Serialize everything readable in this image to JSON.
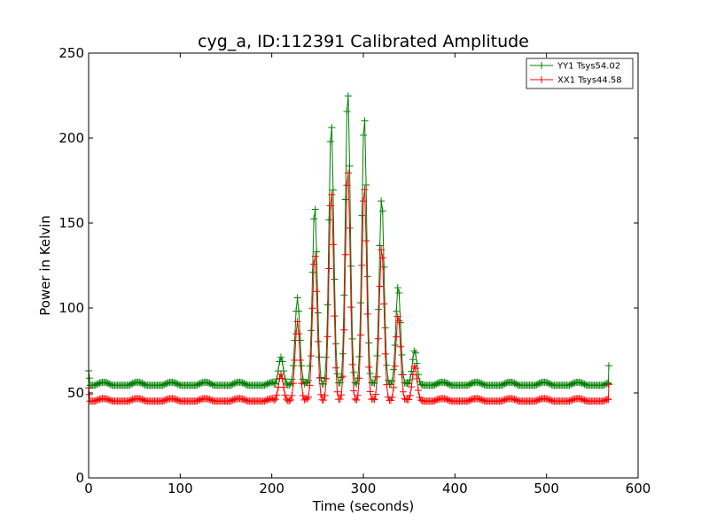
{
  "chart_data": {
    "type": "line",
    "title": "cyg_a, ID:112391 Calibrated Amplitude",
    "xlabel": "Time (seconds)",
    "ylabel": "Power in Kelvin",
    "xlim": [
      0,
      600
    ],
    "ylim": [
      0,
      250
    ],
    "xticks": [
      0,
      100,
      200,
      300,
      400,
      500,
      600
    ],
    "yticks": [
      0,
      50,
      100,
      150,
      200,
      250
    ],
    "grid": false,
    "legend_position": "top-right",
    "marker": "+",
    "sample_interval_seconds": 1.5,
    "series": [
      {
        "name": "YY1 Tsys54.02",
        "color": "#008000",
        "baseline": 54.5,
        "ripple_amplitude": 1.8,
        "ripple_period_seconds": 37,
        "peaks": [
          {
            "time": 0,
            "value": 63
          },
          {
            "time": 210,
            "value": 71
          },
          {
            "time": 228,
            "value": 106
          },
          {
            "time": 247,
            "value": 160
          },
          {
            "time": 265,
            "value": 209
          },
          {
            "time": 283,
            "value": 228
          },
          {
            "time": 301,
            "value": 213
          },
          {
            "time": 320,
            "value": 165
          },
          {
            "time": 338,
            "value": 113
          },
          {
            "time": 356,
            "value": 75
          },
          {
            "time": 568,
            "value": 66
          }
        ]
      },
      {
        "name": "XX1 Tsys44.58",
        "color": "#ff0000",
        "baseline": 45.2,
        "ripple_amplitude": 1.5,
        "ripple_period_seconds": 37,
        "peaks": [
          {
            "time": 0,
            "value": 53
          },
          {
            "time": 210,
            "value": 61
          },
          {
            "time": 228,
            "value": 92
          },
          {
            "time": 247,
            "value": 132
          },
          {
            "time": 265,
            "value": 169
          },
          {
            "time": 283,
            "value": 182
          },
          {
            "time": 301,
            "value": 172
          },
          {
            "time": 320,
            "value": 136
          },
          {
            "time": 338,
            "value": 96
          },
          {
            "time": 356,
            "value": 66
          },
          {
            "time": 568,
            "value": 55
          }
        ]
      }
    ]
  }
}
